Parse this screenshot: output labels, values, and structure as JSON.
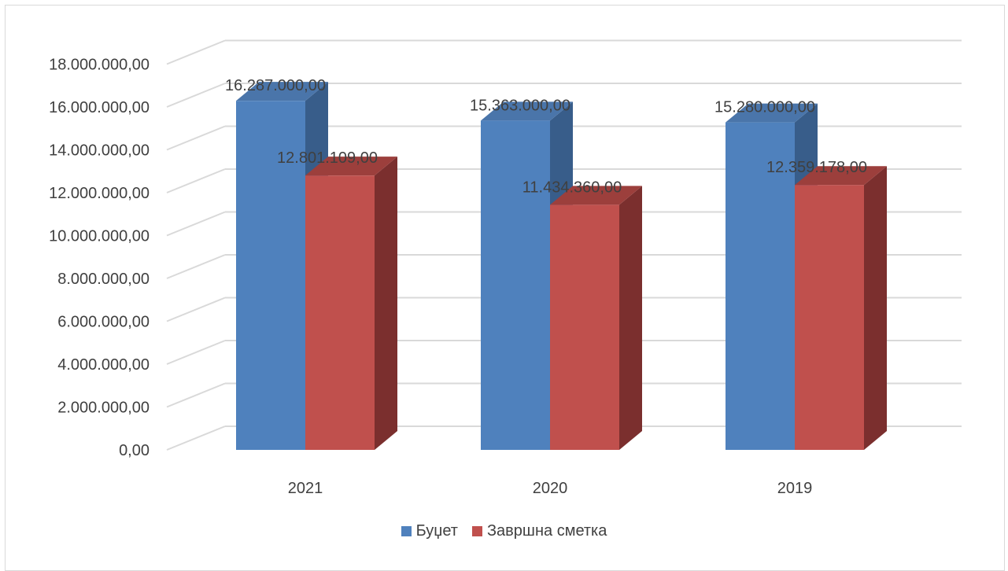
{
  "chart_data": {
    "type": "bar",
    "variant": "3d-clustered-column",
    "categories": [
      "2021",
      "2020",
      "2019"
    ],
    "series": [
      {
        "name": "Буџет",
        "values": [
          16287000.0,
          15363000.0,
          15280000.0
        ],
        "labels": [
          "16.287.000,00",
          "15.363.000,00",
          "15.280.000,00"
        ],
        "color": "#4f81bd",
        "side_color": "#385d8a",
        "top_color": "#4a75aa"
      },
      {
        "name": "Завршна сметка",
        "values": [
          12801109.0,
          11434360.0,
          12359178.0
        ],
        "labels": [
          "12.801.109,00",
          "11.434.360,00",
          "12.359.178,00"
        ],
        "color": "#c0504d",
        "side_color": "#7b2f2e",
        "top_color": "#9c3f3c"
      }
    ],
    "ylim": [
      0,
      18000000
    ],
    "yticks": [
      0,
      2000000,
      4000000,
      6000000,
      8000000,
      10000000,
      12000000,
      14000000,
      16000000,
      18000000
    ],
    "ytick_labels": [
      "0,00",
      "2.000.000,00",
      "4.000.000,00",
      "6.000.000,00",
      "8.000.000,00",
      "10.000.000,00",
      "12.000.000,00",
      "14.000.000,00",
      "16.000.000,00",
      "18.000.000,00"
    ],
    "title": "",
    "xlabel": "",
    "ylabel": "",
    "grid": true,
    "legend_position": "bottom",
    "gridline_color": "#d9d9d9"
  }
}
